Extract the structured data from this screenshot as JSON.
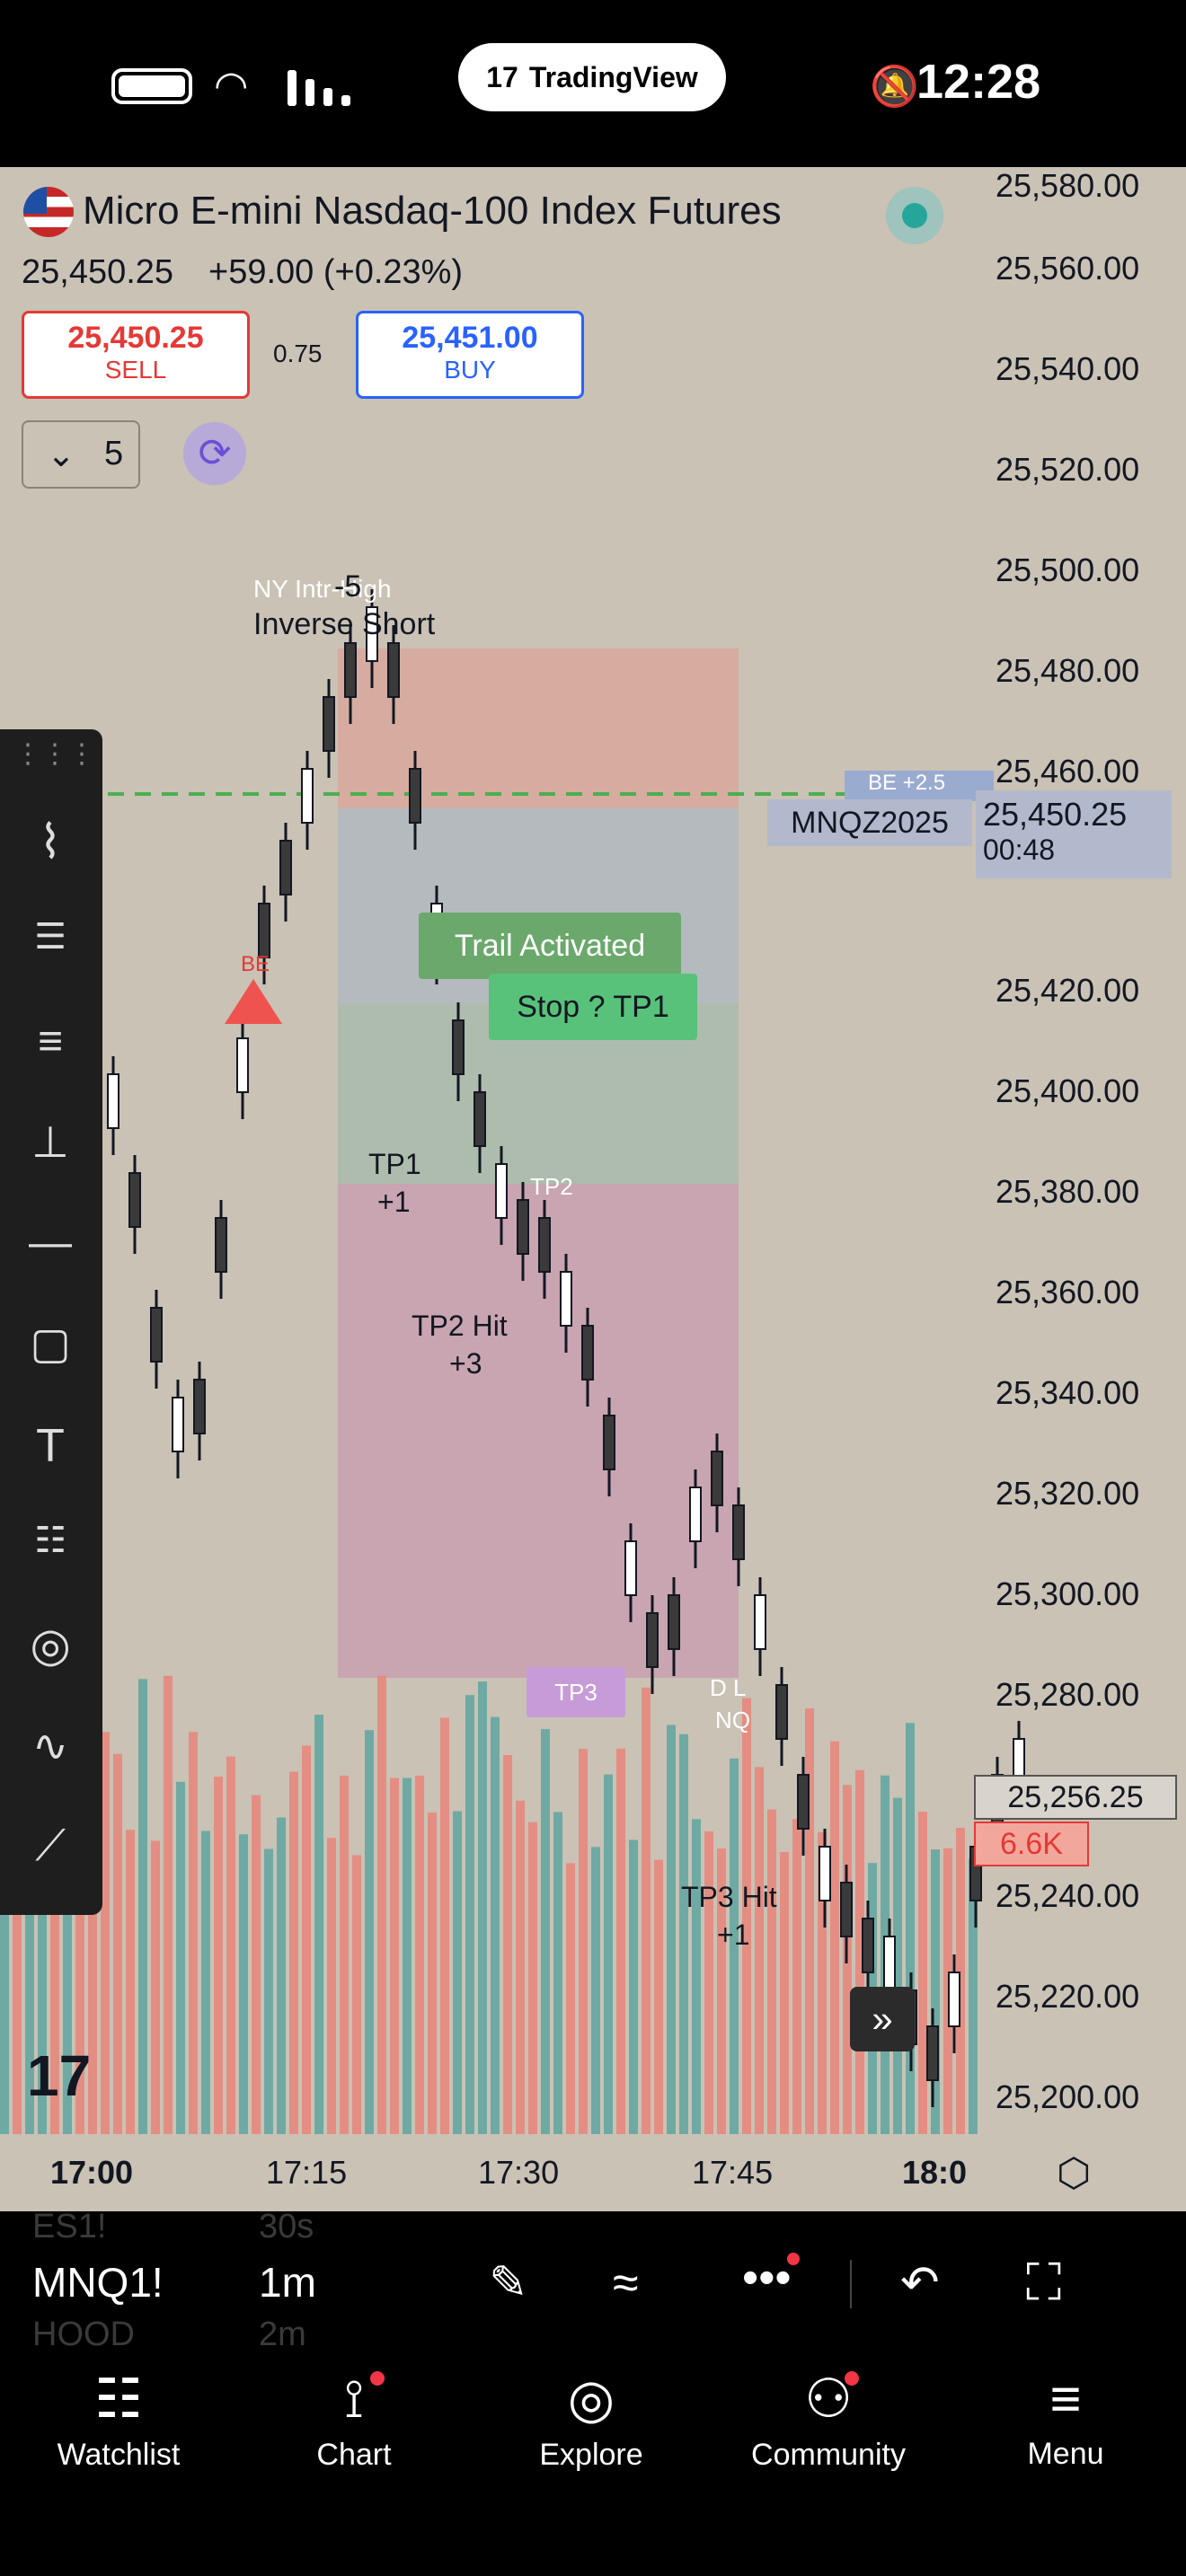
{
  "status_bar": {
    "app_pill": "TradingView",
    "time": "12:28"
  },
  "symbol": {
    "name": "Micro E-mini Nasdaq-100 Index Futures",
    "price": "25,450.25",
    "change": "+59.00 (+0.23%)",
    "sell_price": "25,450.25",
    "sell_label": "SELL",
    "spread": "0.75",
    "buy_price": "25,451.00",
    "buy_label": "BUY",
    "qty": "5"
  },
  "price_axis": [
    "25,580.00",
    "25,560.00",
    "25,540.00",
    "25,520.00",
    "25,500.00",
    "25,480.00",
    "25,460.00",
    "25,420.00",
    "25,400.00",
    "25,380.00",
    "25,360.00",
    "25,340.00",
    "25,320.00",
    "25,300.00",
    "25,280.00",
    "25,240.00",
    "25,220.00",
    "25,200.00"
  ],
  "last_price_tag": {
    "price": "25,450.25",
    "countdown": "00:48",
    "symbol": "MNQZ2025"
  },
  "crosshair_tag": {
    "price": "25,256.25",
    "volume": "6.6K"
  },
  "time_axis": [
    "17:00",
    "17:15",
    "17:30",
    "17:45",
    "18:0"
  ],
  "annotations": {
    "ny_high": "NY Intr-High",
    "inverse_short": "Inverse Short",
    "trail": "Trail Activated",
    "stop": "Stop ? TP1",
    "tp1": "TP1",
    "tp1_val": "+1",
    "tp2": "TP2",
    "tp2_hit": "TP2 Hit",
    "tp2_val": "+3",
    "tp3": "TP3",
    "tp3_hit": "TP3 Hit",
    "tp3_val": "+1",
    "be": "BE",
    "five": "-5",
    "dl": "D L",
    "nq": "NQ",
    "be25": "BE +2.5"
  },
  "bottom_bar": {
    "symbol": "MNQ1!",
    "interval": "1m",
    "ghost_symbol_above": "ES1!",
    "ghost_interval_above": "30s",
    "ghost_symbol_below": "HOOD",
    "ghost_interval_below": "2m"
  },
  "tabs": [
    {
      "label": "Watchlist",
      "icon": "watchlist-icon"
    },
    {
      "label": "Chart",
      "icon": "chart-icon"
    },
    {
      "label": "Explore",
      "icon": "compass-icon"
    },
    {
      "label": "Community",
      "icon": "community-icon"
    },
    {
      "label": "Menu",
      "icon": "menu-icon"
    }
  ],
  "colors": {
    "up": "#5ea6a0",
    "down": "#e9857a",
    "sell": "#e53935",
    "buy": "#2962ff",
    "accent": "#d54ae8"
  }
}
